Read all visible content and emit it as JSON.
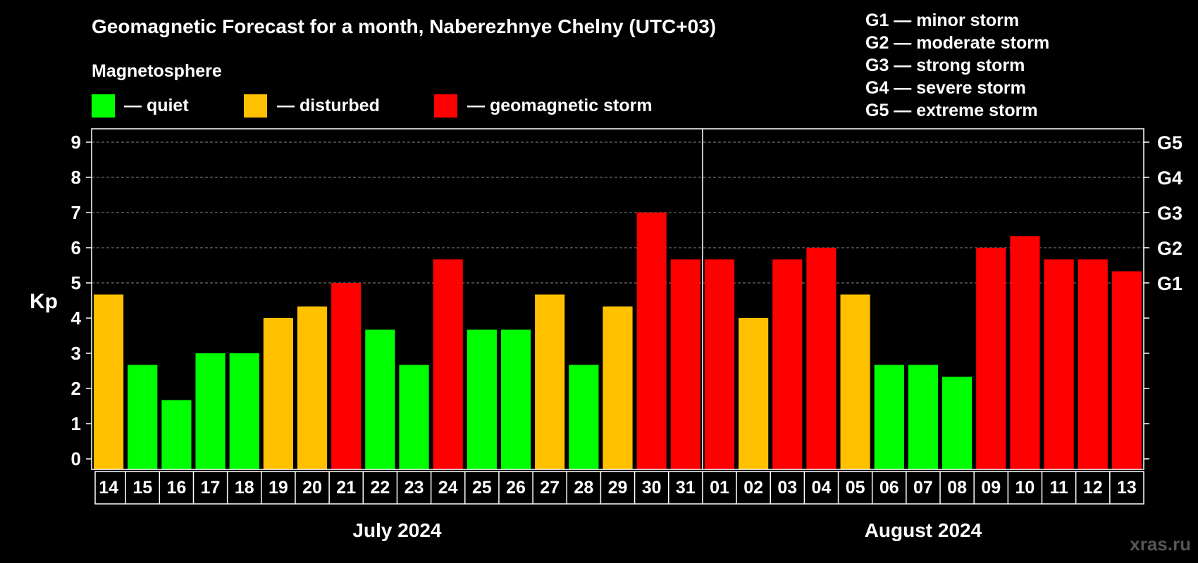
{
  "chart_data": {
    "type": "bar",
    "title": "Geomagnetic Forecast for a month, Naberezhnye Chelny (UTC+03)",
    "legend": {
      "heading": "Magnetosphere",
      "items": [
        {
          "key": "quiet",
          "label": "— quiet",
          "color": "#00ff00"
        },
        {
          "key": "disturbed",
          "label": "— disturbed",
          "color": "#ffc000"
        },
        {
          "key": "storm",
          "label": "— geomagnetic storm",
          "color": "#ff0000"
        }
      ],
      "placement": "top-left"
    },
    "storm_scale": [
      "G1 — minor storm",
      "G2 — moderate storm",
      "G3 — strong storm",
      "G4 — severe storm",
      "G5 — extreme storm"
    ],
    "ylabel": "Kp",
    "ylim": [
      0,
      9
    ],
    "yticks": [
      "0",
      "1",
      "2",
      "3",
      "4",
      "5",
      "6",
      "7",
      "8",
      "9"
    ],
    "right_ticks": [
      {
        "value": 5,
        "label": "G1"
      },
      {
        "value": 6,
        "label": "G2"
      },
      {
        "value": 7,
        "label": "G3"
      },
      {
        "value": 8,
        "label": "G4"
      },
      {
        "value": 9,
        "label": "G5"
      }
    ],
    "grid": true,
    "months": [
      {
        "label": "July 2024",
        "days": 18
      },
      {
        "label": "August 2024",
        "days": 13
      }
    ],
    "categories": [
      "14",
      "15",
      "16",
      "17",
      "18",
      "19",
      "20",
      "21",
      "22",
      "23",
      "24",
      "25",
      "26",
      "27",
      "28",
      "29",
      "30",
      "31",
      "01",
      "02",
      "03",
      "04",
      "05",
      "06",
      "07",
      "08",
      "09",
      "10",
      "11",
      "12",
      "13"
    ],
    "values": [
      4.67,
      2.67,
      1.67,
      3.0,
      3.0,
      4.0,
      4.33,
      5.0,
      3.67,
      2.67,
      5.67,
      3.67,
      3.67,
      4.67,
      2.67,
      4.33,
      7.0,
      5.67,
      5.67,
      4.0,
      5.67,
      6.0,
      4.67,
      2.67,
      2.67,
      2.33,
      6.0,
      6.33,
      5.67,
      5.67,
      5.33
    ],
    "levels": [
      "disturbed",
      "quiet",
      "quiet",
      "quiet",
      "quiet",
      "disturbed",
      "disturbed",
      "storm",
      "quiet",
      "quiet",
      "storm",
      "quiet",
      "quiet",
      "disturbed",
      "quiet",
      "disturbed",
      "storm",
      "storm",
      "storm",
      "disturbed",
      "storm",
      "storm",
      "disturbed",
      "quiet",
      "quiet",
      "quiet",
      "storm",
      "storm",
      "storm",
      "storm",
      "storm"
    ]
  },
  "watermark": "xras.ru"
}
